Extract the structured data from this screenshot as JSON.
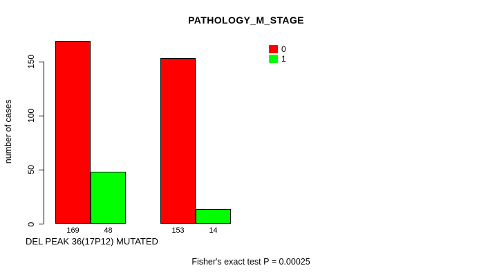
{
  "page": {
    "background_color": "#FFFFFF",
    "text_color": "#000000"
  },
  "chart_data": {
    "type": "bar",
    "title": "PATHOLOGY_M_STAGE",
    "xlabel": "DEL PEAK 36(17P12) MUTATED",
    "ylabel": "number of cases",
    "categories": [
      "",
      ""
    ],
    "series": [
      {
        "name": "0",
        "color": "#FF0000",
        "values": [
          169,
          153
        ]
      },
      {
        "name": "1",
        "color": "#00FF00",
        "values": [
          48,
          14
        ]
      }
    ],
    "bar_value_labels": [
      [
        "169",
        "48"
      ],
      [
        "153",
        "14"
      ]
    ],
    "yticks": [
      0,
      50,
      100,
      150
    ],
    "ylim": [
      0,
      169
    ],
    "grid": false,
    "bar_border_color": "#000000",
    "axis_color": "#000000",
    "legend": {
      "position": "top-right",
      "entries": [
        {
          "label": "0",
          "color": "#FF0000"
        },
        {
          "label": "1",
          "color": "#00FF00"
        }
      ]
    },
    "annotation": "Fisher's exact test P = 0.00025"
  }
}
